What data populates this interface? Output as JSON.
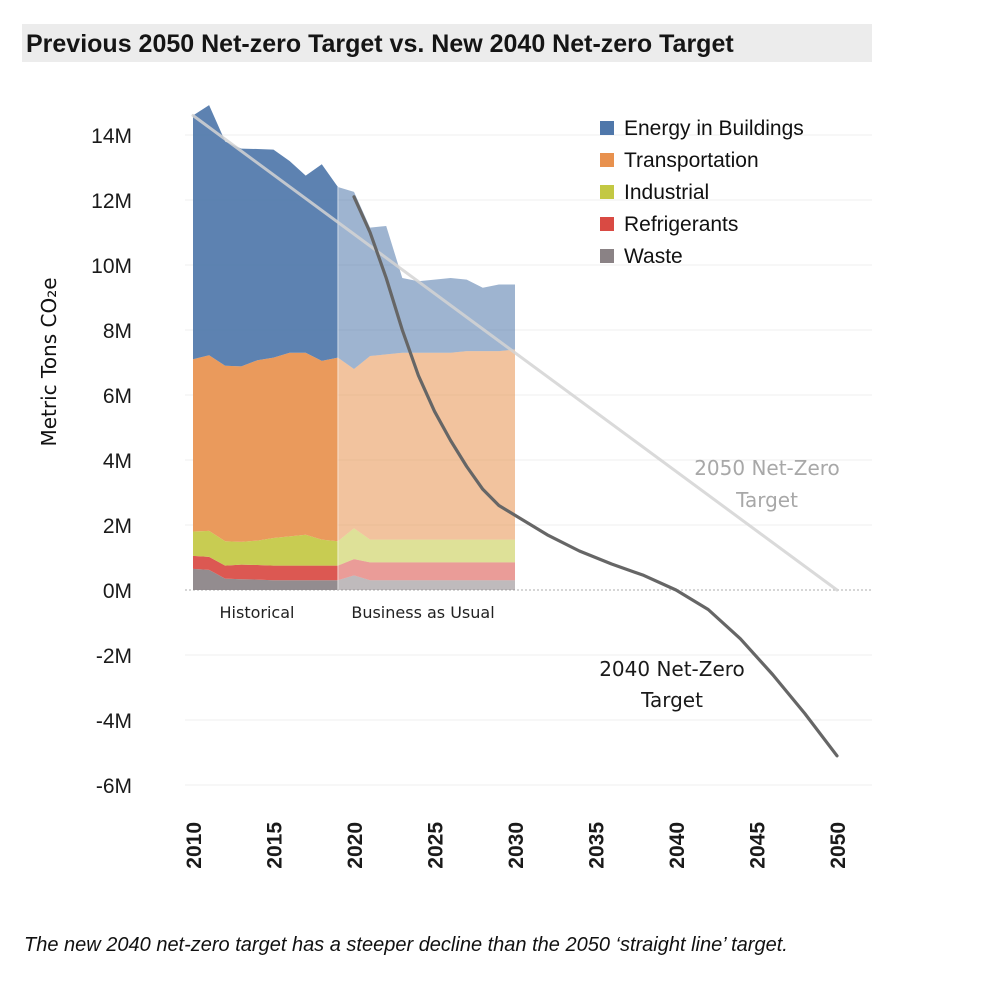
{
  "title": "Previous 2050 Net-zero Target vs. New 2040 Net-zero Target",
  "caption": "The new 2040 net-zero target has a steeper decline than the 2050 ‘straight line’ target.",
  "chart_data": {
    "type": "area",
    "ylabel": "Metric Tons CO₂e",
    "xlim": [
      2010,
      2050
    ],
    "ylim": [
      -6,
      14
    ],
    "y_unit": "M",
    "y_ticks": [
      "14M",
      "12M",
      "10M",
      "8M",
      "6M",
      "4M",
      "2M",
      "0M",
      "-2M",
      "-4M",
      "-6M"
    ],
    "x_ticks": [
      "2010",
      "2015",
      "2020",
      "2025",
      "2030",
      "2035",
      "2040",
      "2045",
      "2050"
    ],
    "legend_position": "top-right",
    "grid": "horizontal",
    "period_labels": {
      "historical": "Historical",
      "bau": "Business as Usual"
    },
    "x": [
      2010,
      2011,
      2012,
      2013,
      2014,
      2015,
      2016,
      2017,
      2018,
      2019,
      2020,
      2021,
      2022,
      2023,
      2024,
      2025,
      2026,
      2027,
      2028,
      2029,
      2030
    ],
    "series": [
      {
        "name": "Waste",
        "color": "#8a8285",
        "values": [
          0.65,
          0.62,
          0.35,
          0.33,
          0.32,
          0.3,
          0.3,
          0.3,
          0.3,
          0.3,
          0.45,
          0.3,
          0.3,
          0.3,
          0.3,
          0.3,
          0.3,
          0.3,
          0.3,
          0.3,
          0.3
        ]
      },
      {
        "name": "Refrigerants",
        "color": "#d94a43",
        "values": [
          0.4,
          0.4,
          0.4,
          0.45,
          0.45,
          0.45,
          0.45,
          0.45,
          0.45,
          0.45,
          0.5,
          0.55,
          0.55,
          0.55,
          0.55,
          0.55,
          0.55,
          0.55,
          0.55,
          0.55,
          0.55
        ]
      },
      {
        "name": "Industrial",
        "color": "#c3c843",
        "values": [
          0.75,
          0.8,
          0.75,
          0.7,
          0.75,
          0.85,
          0.9,
          0.95,
          0.8,
          0.75,
          0.95,
          0.7,
          0.7,
          0.7,
          0.7,
          0.7,
          0.7,
          0.7,
          0.7,
          0.7,
          0.7
        ]
      },
      {
        "name": "Transportation",
        "color": "#e8914e",
        "values": [
          5.3,
          5.4,
          5.4,
          5.4,
          5.55,
          5.55,
          5.65,
          5.6,
          5.5,
          5.65,
          4.9,
          5.65,
          5.7,
          5.75,
          5.75,
          5.75,
          5.75,
          5.8,
          5.8,
          5.8,
          5.85
        ]
      },
      {
        "name": "Energy in Buildings",
        "color": "#4f77aa",
        "values": [
          7.5,
          7.7,
          6.9,
          6.7,
          6.5,
          6.4,
          5.9,
          5.45,
          6.05,
          5.25,
          5.45,
          3.95,
          3.95,
          2.3,
          2.2,
          2.25,
          2.3,
          2.2,
          1.95,
          2.05,
          2.0
        ]
      }
    ],
    "targets": [
      {
        "name_lines": [
          "2050 Net-Zero",
          "Target"
        ],
        "color": "#d4d4d4",
        "x": [
          2010,
          2050
        ],
        "y": [
          14.6,
          0.0
        ]
      },
      {
        "name_lines": [
          "2040 Net-Zero",
          "Target"
        ],
        "color": "#666666",
        "x": [
          2020,
          2021,
          2022,
          2023,
          2024,
          2025,
          2026,
          2027,
          2028,
          2029,
          2030,
          2032,
          2034,
          2036,
          2038,
          2040,
          2042,
          2044,
          2046,
          2048,
          2050
        ],
        "y": [
          12.1,
          11.0,
          9.6,
          8.0,
          6.6,
          5.5,
          4.6,
          3.8,
          3.1,
          2.6,
          2.3,
          1.7,
          1.2,
          0.8,
          0.45,
          0.0,
          -0.6,
          -1.5,
          -2.6,
          -3.8,
          -5.1
        ]
      }
    ]
  }
}
